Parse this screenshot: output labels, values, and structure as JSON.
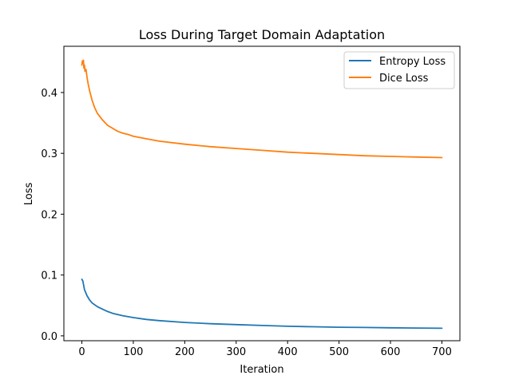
{
  "chart_data": {
    "type": "line",
    "title": "Loss During Target Domain Adaptation",
    "xlabel": "Iteration",
    "ylabel": "Loss",
    "xlim": [
      -35,
      735
    ],
    "ylim": [
      -0.008,
      0.476
    ],
    "xticks": [
      0,
      100,
      200,
      300,
      400,
      500,
      600,
      700
    ],
    "yticks": [
      0.0,
      0.1,
      0.2,
      0.3,
      0.4
    ],
    "ytick_labels": [
      "0.0",
      "0.1",
      "0.2",
      "0.3",
      "0.4"
    ],
    "grid": false,
    "legend_position": "top-right",
    "series": [
      {
        "name": "Entropy Loss",
        "color": "#1f77b4",
        "x": [
          0,
          2,
          5,
          10,
          15,
          20,
          30,
          40,
          50,
          60,
          70,
          80,
          100,
          125,
          150,
          200,
          250,
          300,
          350,
          400,
          450,
          500,
          550,
          600,
          650,
          700
        ],
        "y": [
          0.093,
          0.09,
          0.076,
          0.066,
          0.059,
          0.054,
          0.048,
          0.044,
          0.04,
          0.037,
          0.035,
          0.033,
          0.03,
          0.027,
          0.025,
          0.022,
          0.02,
          0.0185,
          0.017,
          0.0158,
          0.015,
          0.0142,
          0.0138,
          0.0132,
          0.0128,
          0.0124
        ]
      },
      {
        "name": "Dice Loss",
        "color": "#ff7f0e",
        "x": [
          0,
          1,
          2,
          3,
          4,
          5,
          6,
          8,
          10,
          12,
          15,
          20,
          25,
          30,
          40,
          50,
          60,
          70,
          80,
          90,
          100,
          125,
          150,
          200,
          250,
          300,
          350,
          400,
          450,
          500,
          550,
          600,
          650,
          700
        ],
        "y": [
          0.445,
          0.452,
          0.448,
          0.453,
          0.44,
          0.445,
          0.435,
          0.438,
          0.425,
          0.415,
          0.403,
          0.387,
          0.375,
          0.366,
          0.355,
          0.346,
          0.341,
          0.336,
          0.333,
          0.331,
          0.328,
          0.324,
          0.32,
          0.315,
          0.311,
          0.308,
          0.305,
          0.302,
          0.3,
          0.298,
          0.296,
          0.295,
          0.294,
          0.293
        ]
      }
    ]
  }
}
